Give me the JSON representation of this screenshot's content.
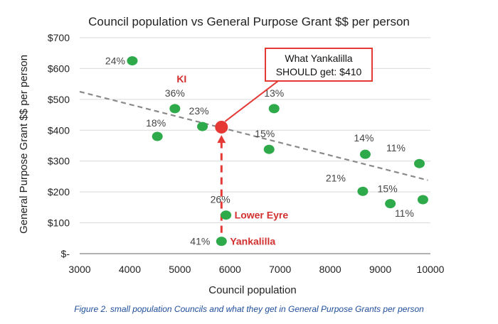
{
  "chart_data": {
    "type": "scatter",
    "title": "Council population vs General Purpose Grant $$ per person",
    "xlabel": "Council population",
    "ylabel": "General Purpose Grant $$ per person",
    "xlim": [
      3000,
      10000
    ],
    "ylim": [
      0,
      700
    ],
    "x_ticks": [
      3000,
      4000,
      5000,
      6000,
      7000,
      8000,
      9000,
      10000
    ],
    "y_ticks": [
      0,
      100,
      200,
      300,
      400,
      500,
      600,
      700
    ],
    "y_tick_labels": [
      "$-",
      "$100",
      "$200",
      "$300",
      "$400",
      "$500",
      "$600",
      "$700"
    ],
    "grid": "horizontal",
    "colors": {
      "point": "#2eaa4a",
      "trend": "#8a8a8a",
      "highlight": "#e53935",
      "accent_text": "#d32f2f"
    },
    "points": [
      {
        "x": 4050,
        "y": 625,
        "label": "24%"
      },
      {
        "x": 4550,
        "y": 380,
        "label": "18%"
      },
      {
        "x": 4900,
        "y": 470,
        "label": "36%"
      },
      {
        "x": 5450,
        "y": 412,
        "label": "23%"
      },
      {
        "x": 5830,
        "y": 40,
        "label": "41%",
        "name": "Yankalilla"
      },
      {
        "x": 5920,
        "y": 125,
        "label": "26%",
        "name": "Lower Eyre"
      },
      {
        "x": 6780,
        "y": 338,
        "label": "15%"
      },
      {
        "x": 6880,
        "y": 470,
        "label": "13%"
      },
      {
        "x": 8650,
        "y": 202,
        "label": "21%"
      },
      {
        "x": 8700,
        "y": 322,
        "label": "14%"
      },
      {
        "x": 9200,
        "y": 162,
        "label": "15%"
      },
      {
        "x": 9780,
        "y": 292,
        "label": "11%"
      },
      {
        "x": 9850,
        "y": 175,
        "label": "11%"
      }
    ],
    "trendline": {
      "x": [
        3000,
        9950
      ],
      "y": [
        525,
        238
      ]
    },
    "highlight": {
      "x": 5830,
      "y": 410,
      "label": "KI"
    },
    "arrow": {
      "x": 5830,
      "from_y": 40,
      "to_y": 405
    },
    "callout": {
      "line1": "What Yankalilla",
      "line2": "SHOULD get: $410"
    }
  },
  "caption": "Figure 2. small population Councils and what they get in General Purpose Grants per person"
}
